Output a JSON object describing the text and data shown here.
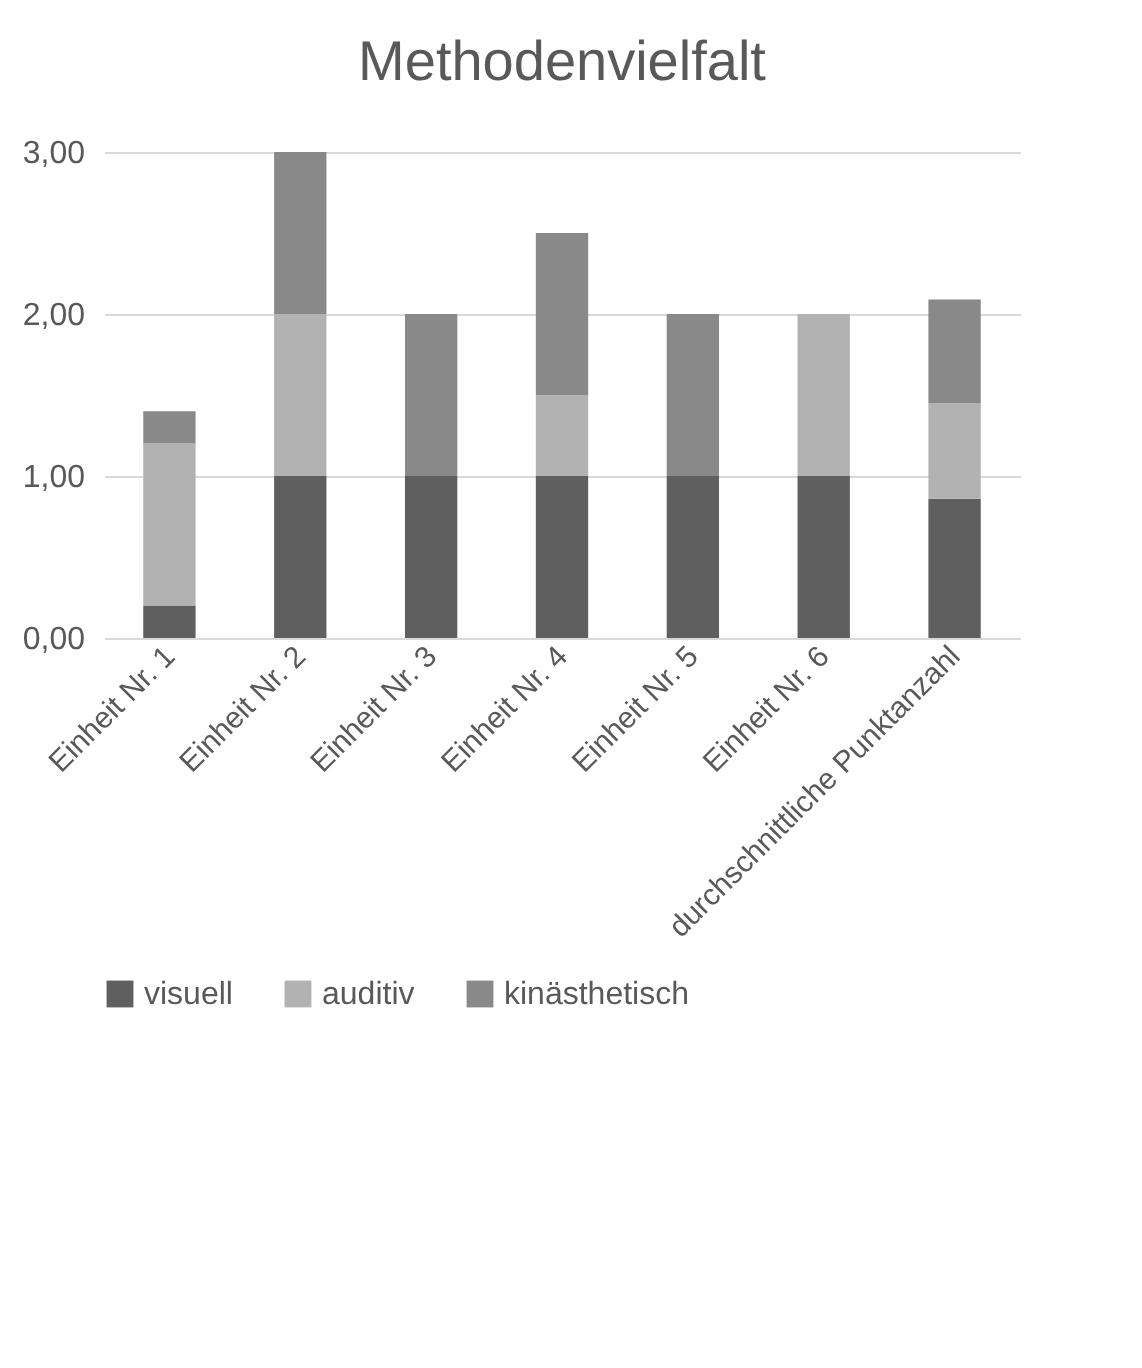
{
  "chart_data": {
    "type": "bar",
    "title": "Methodenvielfalt",
    "stacked": true,
    "grid": "y",
    "legend": "bottom",
    "categories": [
      "Einheit Nr. 1",
      "Einheit Nr. 2",
      "Einheit Nr. 3",
      "Einheit Nr. 4",
      "Einheit Nr. 5",
      "Einheit Nr. 6",
      "durchschnittliche Punktanzahl"
    ],
    "series": [
      {
        "name": "visuell",
        "color": "#5f5f5f",
        "values": [
          0.2,
          1,
          1,
          1,
          1,
          1,
          0.86
        ]
      },
      {
        "name": "auditiv",
        "color": "#b2b2b2",
        "values": [
          1,
          1,
          0,
          0.5,
          0,
          1,
          0.59
        ]
      },
      {
        "name": "kinästhetisch",
        "color": "#898989",
        "values": [
          0.2,
          1,
          1,
          1,
          1,
          0,
          0.64
        ]
      }
    ],
    "ylim": [
      0,
      3
    ],
    "yticks": [
      {
        "value": 0,
        "label": "0,00"
      },
      {
        "value": 1,
        "label": "1,00"
      },
      {
        "value": 2,
        "label": "2,00"
      },
      {
        "value": 3,
        "label": "3,00"
      }
    ]
  }
}
